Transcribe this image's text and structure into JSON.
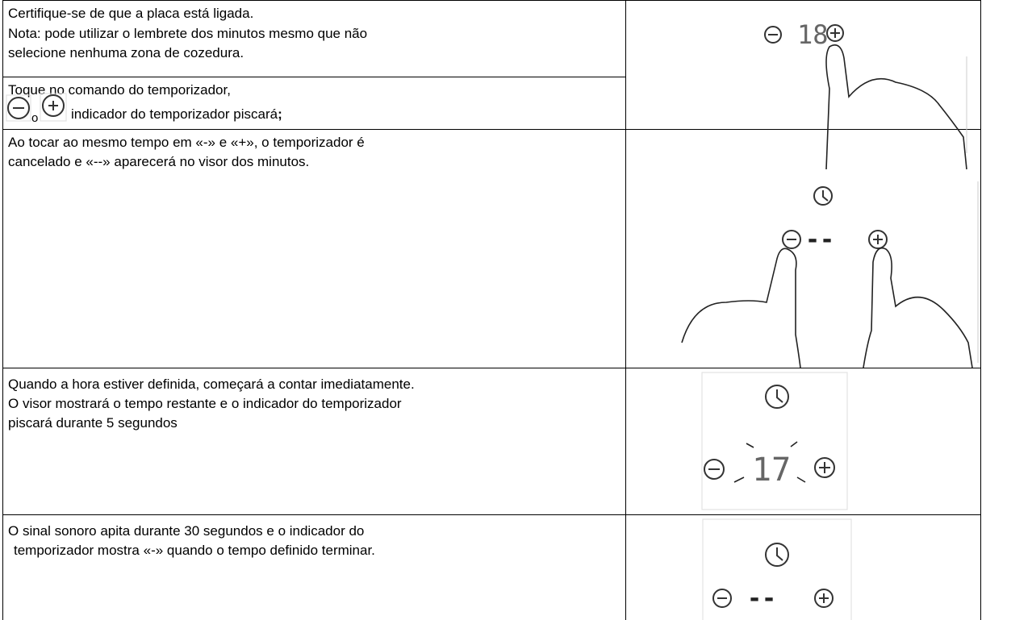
{
  "step1": {
    "lines": [
      "Certifique-se de que a placa está ligada.",
      "Nota: pode utilizar o lembrete dos minutos mesmo que não",
      "selecione nenhuma zona de cozedura."
    ]
  },
  "step2": {
    "line1": "Toque no comando do temporizador,",
    "connector": "o",
    "line2": "indicador do temporizador piscará",
    "punct": ";"
  },
  "step3": {
    "lines": [
      "Ao tocar ao mesmo tempo em «-» e «+», o temporizador é",
      "cancelado e «--» aparecerá no visor dos minutos."
    ]
  },
  "step4": {
    "lines": [
      "Quando a hora estiver definida, começará a contar imediatamente.",
      "O visor mostrará o tempo restante e o indicador do temporizador",
      "piscará durante 5 segundos"
    ]
  },
  "step5": {
    "lines": [
      "O sinal sonoro apita durante 30 segundos e o indicador do",
      "temporizador mostra «-» quando o tempo definido terminar."
    ]
  },
  "displays": {
    "d1": "18",
    "d3": "--",
    "d4": "17",
    "d5": "--"
  }
}
